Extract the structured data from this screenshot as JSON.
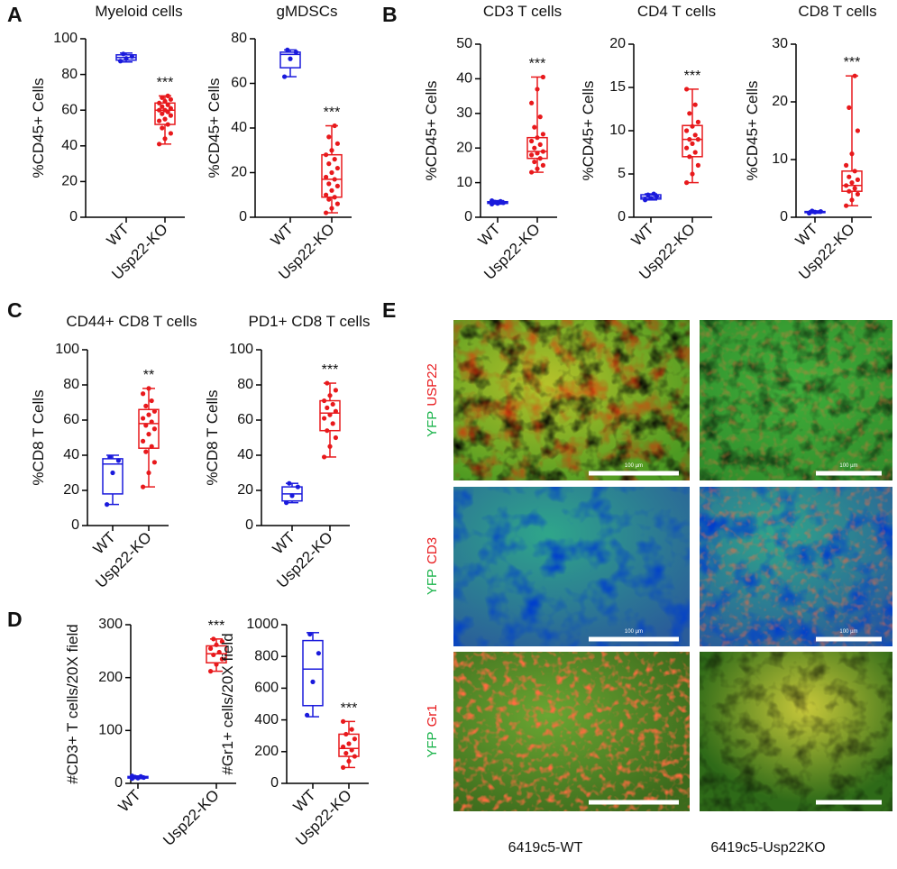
{
  "panels": [
    "A",
    "B",
    "C",
    "D",
    "E"
  ],
  "chart_data": [
    {
      "type": "box",
      "title": "Myeloid cells",
      "ylabel": "%CD45+ Cells",
      "categories": [
        "WT",
        "Usp22-KO"
      ],
      "ylim": [
        0,
        100
      ],
      "yticks": [
        0,
        20,
        40,
        60,
        80,
        100
      ],
      "annotation": "***",
      "groups": [
        {
          "color": "#1a1adc",
          "min": 87,
          "q1": 88,
          "median": 89.5,
          "q3": 91,
          "max": 92,
          "points": [
            87.5,
            89,
            90,
            91.5
          ]
        },
        {
          "color": "#e8191c",
          "min": 41,
          "q1": 52,
          "median": 60,
          "q3": 64,
          "max": 68,
          "points": [
            41,
            44,
            47,
            50,
            52,
            54,
            55,
            57,
            58,
            59,
            60,
            60,
            61,
            62,
            63,
            64,
            65,
            66,
            67,
            68
          ]
        }
      ]
    },
    {
      "type": "box",
      "title": "gMDSCs",
      "ylabel": "%CD45+ Cells",
      "categories": [
        "WT",
        "Usp22-KO"
      ],
      "ylim": [
        0,
        80
      ],
      "yticks": [
        0,
        20,
        40,
        60,
        80
      ],
      "annotation": "***",
      "groups": [
        {
          "color": "#1a1adc",
          "min": 63,
          "q1": 67,
          "median": 73,
          "q3": 74,
          "max": 75,
          "points": [
            63,
            71,
            74,
            75
          ]
        },
        {
          "color": "#e8191c",
          "min": 2,
          "q1": 9,
          "median": 17,
          "q3": 28,
          "max": 41,
          "points": [
            2,
            4,
            6,
            8,
            9,
            10,
            12,
            14,
            15,
            17,
            18,
            20,
            22,
            24,
            26,
            28,
            30,
            33,
            36,
            41
          ]
        }
      ]
    },
    {
      "type": "box",
      "title": "CD3 T cells",
      "ylabel": "%CD45+ Cells",
      "categories": [
        "WT",
        "Usp22-KO"
      ],
      "ylim": [
        0,
        50
      ],
      "yticks": [
        0,
        10,
        20,
        30,
        40,
        50
      ],
      "annotation": "***",
      "groups": [
        {
          "color": "#1a1adc",
          "min": 3.8,
          "q1": 4,
          "median": 4.2,
          "q3": 4.5,
          "max": 4.8,
          "points": [
            3.8,
            4,
            4.2,
            4.4,
            4.6,
            4.8
          ]
        },
        {
          "color": "#e8191c",
          "min": 13,
          "q1": 17,
          "median": 19,
          "q3": 23,
          "max": 40.5,
          "points": [
            13,
            14,
            15,
            16,
            17,
            18,
            18.5,
            19,
            20,
            21,
            22,
            23,
            24,
            26,
            29,
            33,
            37,
            40.5
          ]
        }
      ]
    },
    {
      "type": "box",
      "title": "CD4 T cells",
      "ylabel": "%CD45+ Cells",
      "categories": [
        "WT",
        "Usp22-KO"
      ],
      "ylim": [
        0,
        20
      ],
      "yticks": [
        0,
        5,
        10,
        15,
        20
      ],
      "annotation": "***",
      "groups": [
        {
          "color": "#1a1adc",
          "min": 2,
          "q1": 2.1,
          "median": 2.3,
          "q3": 2.6,
          "max": 2.7,
          "points": [
            2,
            2.2,
            2.4,
            2.6,
            2.7
          ]
        },
        {
          "color": "#e8191c",
          "min": 4,
          "q1": 7,
          "median": 9,
          "q3": 10.6,
          "max": 14.8,
          "points": [
            4,
            5,
            6,
            7,
            7.5,
            8,
            8.5,
            9,
            9,
            9.5,
            10,
            10.5,
            11,
            12,
            13,
            14.8
          ]
        }
      ]
    },
    {
      "type": "box",
      "title": "CD8 T cells",
      "ylabel": "%CD45+ Cells",
      "categories": [
        "WT",
        "Usp22-KO"
      ],
      "ylim": [
        0,
        30
      ],
      "yticks": [
        0,
        10,
        20,
        30
      ],
      "annotation": "***",
      "groups": [
        {
          "color": "#1a1adc",
          "min": 0.7,
          "q1": 0.8,
          "median": 0.9,
          "q3": 1,
          "max": 1.1,
          "points": [
            0.7,
            0.9,
            1,
            1.1
          ]
        },
        {
          "color": "#e8191c",
          "min": 2,
          "q1": 4.5,
          "median": 5.5,
          "q3": 8,
          "max": 24.5,
          "points": [
            2,
            3,
            4,
            4.5,
            5,
            5.5,
            6,
            6.5,
            7,
            8,
            9,
            11,
            15,
            19,
            24.5
          ]
        }
      ]
    },
    {
      "type": "box",
      "title": "CD44+ CD8 T cells",
      "ylabel": "%CD8 T Cells",
      "categories": [
        "WT",
        "Usp22-KO"
      ],
      "ylim": [
        0,
        100
      ],
      "yticks": [
        0,
        20,
        40,
        60,
        80,
        100
      ],
      "annotation": "**",
      "groups": [
        {
          "color": "#1a1adc",
          "min": 12,
          "q1": 18,
          "median": 35,
          "q3": 38,
          "max": 40,
          "points": [
            12,
            30,
            37,
            39
          ]
        },
        {
          "color": "#e8191c",
          "min": 22,
          "q1": 44,
          "median": 58,
          "q3": 66,
          "max": 78,
          "points": [
            22,
            30,
            36,
            42,
            45,
            48,
            52,
            55,
            57,
            59,
            61,
            63,
            65,
            68,
            71,
            75,
            78
          ]
        }
      ]
    },
    {
      "type": "box",
      "title": "PD1+ CD8 T cells",
      "ylabel": "%CD8 T Cells",
      "categories": [
        "WT",
        "Usp22-KO"
      ],
      "ylim": [
        0,
        100
      ],
      "yticks": [
        0,
        20,
        40,
        60,
        80,
        100
      ],
      "annotation": "***",
      "groups": [
        {
          "color": "#1a1adc",
          "min": 13,
          "q1": 14,
          "median": 18,
          "q3": 22,
          "max": 24,
          "points": [
            13,
            17,
            22,
            24
          ]
        },
        {
          "color": "#e8191c",
          "min": 39,
          "q1": 54,
          "median": 64,
          "q3": 71,
          "max": 81,
          "points": [
            39,
            45,
            50,
            54,
            58,
            61,
            63,
            65,
            67,
            69,
            71,
            74,
            77,
            81
          ]
        }
      ]
    },
    {
      "type": "box",
      "ylabel": "#CD3+ T cells/20X field",
      "categories": [
        "WT",
        "Usp22-KO"
      ],
      "ylim": [
        0,
        300
      ],
      "yticks": [
        0,
        100,
        200,
        300
      ],
      "annotation": "***",
      "groups": [
        {
          "color": "#1a1adc",
          "min": 9,
          "q1": 10,
          "median": 11,
          "q3": 13,
          "max": 14,
          "points": [
            9,
            10,
            11,
            12,
            13,
            14
          ]
        },
        {
          "color": "#e8191c",
          "min": 212,
          "q1": 228,
          "median": 245,
          "q3": 260,
          "max": 273,
          "points": [
            212,
            225,
            235,
            243,
            248,
            255,
            262,
            268,
            273
          ]
        }
      ]
    },
    {
      "type": "box",
      "ylabel": "#Gr1+ cells/20X field",
      "categories": [
        "WT",
        "Usp22-KO"
      ],
      "ylim": [
        0,
        1000
      ],
      "yticks": [
        0,
        200,
        400,
        600,
        800,
        1000
      ],
      "annotation": "***",
      "groups": [
        {
          "color": "#1a1adc",
          "min": 420,
          "q1": 490,
          "median": 720,
          "q3": 900,
          "max": 950,
          "points": [
            430,
            640,
            820,
            940
          ]
        },
        {
          "color": "#e8191c",
          "min": 100,
          "q1": 170,
          "median": 220,
          "q3": 310,
          "max": 390,
          "points": [
            100,
            140,
            170,
            190,
            210,
            230,
            250,
            280,
            310,
            340,
            390
          ]
        }
      ]
    }
  ],
  "images": {
    "rows": [
      [
        "YFP",
        "USP22"
      ],
      [
        "YFP",
        "CD3"
      ],
      [
        "YFP",
        "Gr1"
      ]
    ],
    "scale_bar": "100 µm",
    "columns": [
      "6419c5-WT",
      "6419c5-Usp22KO"
    ]
  }
}
